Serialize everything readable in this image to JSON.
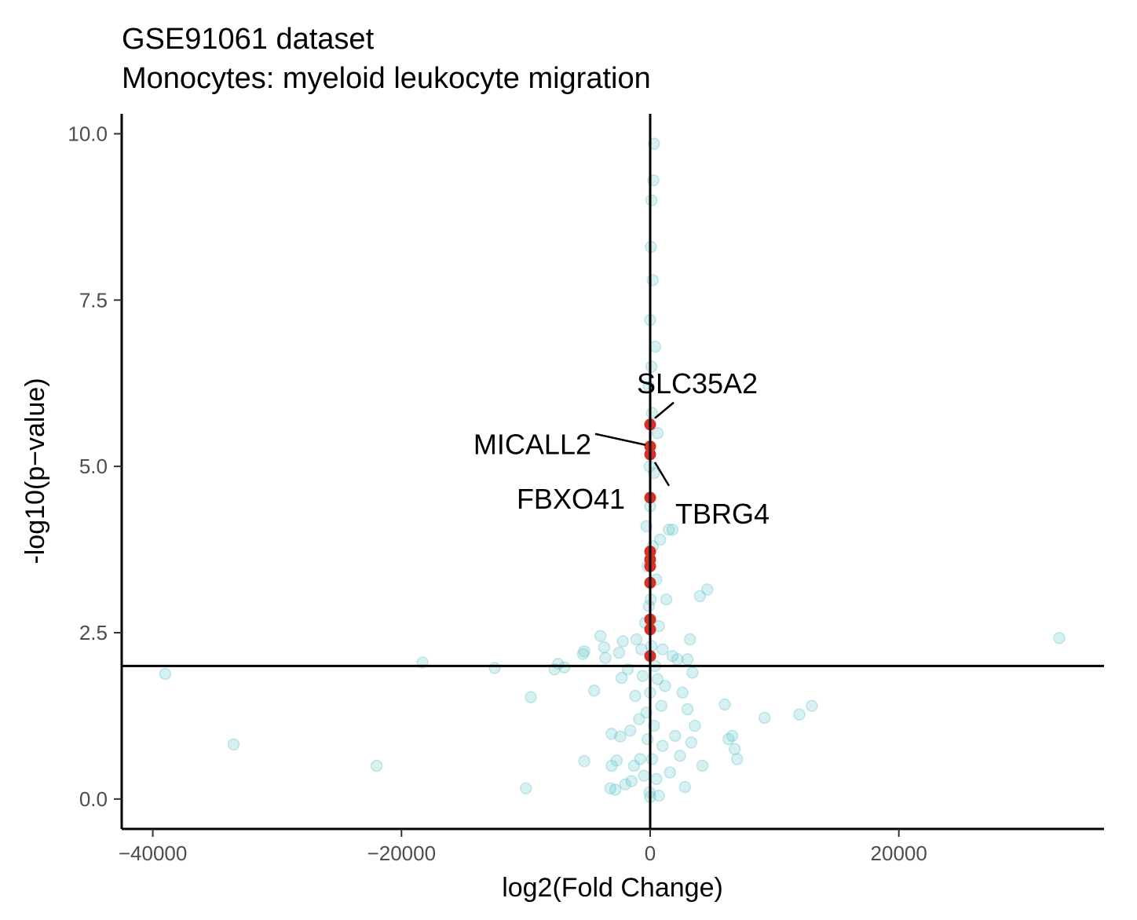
{
  "chart_data": {
    "type": "scatter",
    "title": "GSE91061 dataset",
    "subtitle": "Monocytes: myeloid leukocyte migration",
    "xlabel": "log2(Fold Change)",
    "ylabel": "-log10(p−value)",
    "xlim": [
      -42500,
      36500
    ],
    "ylim": [
      -0.45,
      10.3
    ],
    "x_ticks": [
      -40000,
      -20000,
      0,
      20000
    ],
    "x_tick_labels": [
      "−40000",
      "−20000",
      "0",
      "20000"
    ],
    "y_ticks": [
      0,
      2.5,
      5,
      7.5,
      10
    ],
    "y_tick_labels": [
      "0.0",
      "2.5",
      "5.0",
      "7.5",
      "10.0"
    ],
    "reference_lines": {
      "vertical_x": 0,
      "horizontal_y": 2
    },
    "grid": false,
    "colors": {
      "background_points": "#5fc4c8",
      "highlight_points": "#d73027",
      "axis": "#000000"
    },
    "background_points": [
      {
        "x": -39000,
        "y": 1.88
      },
      {
        "x": -33500,
        "y": 0.82
      },
      {
        "x": -22000,
        "y": 0.5
      },
      {
        "x": -18300,
        "y": 2.05
      },
      {
        "x": -12500,
        "y": 1.97
      },
      {
        "x": -10000,
        "y": 0.16
      },
      {
        "x": -9600,
        "y": 1.53
      },
      {
        "x": -7700,
        "y": 1.95
      },
      {
        "x": -7400,
        "y": 2.03
      },
      {
        "x": -6900,
        "y": 1.98
      },
      {
        "x": -5400,
        "y": 2.18
      },
      {
        "x": -5300,
        "y": 2.22
      },
      {
        "x": -5300,
        "y": 0.57
      },
      {
        "x": -4500,
        "y": 1.63
      },
      {
        "x": -4000,
        "y": 2.45
      },
      {
        "x": -3700,
        "y": 2.28
      },
      {
        "x": -3600,
        "y": 2.12
      },
      {
        "x": -3200,
        "y": 0.16
      },
      {
        "x": -3100,
        "y": 0.5
      },
      {
        "x": -3100,
        "y": 0.98
      },
      {
        "x": -2800,
        "y": 0.14
      },
      {
        "x": -2700,
        "y": 0.58
      },
      {
        "x": -2500,
        "y": 2.2
      },
      {
        "x": -2400,
        "y": 0.94
      },
      {
        "x": -2300,
        "y": 1.82
      },
      {
        "x": -2200,
        "y": 2.37
      },
      {
        "x": -2000,
        "y": 0.22
      },
      {
        "x": -1800,
        "y": 1.95
      },
      {
        "x": -1600,
        "y": 1.03
      },
      {
        "x": -1500,
        "y": 0.27
      },
      {
        "x": -1300,
        "y": 0.5
      },
      {
        "x": -1200,
        "y": 1.55
      },
      {
        "x": -1100,
        "y": 2.4
      },
      {
        "x": -900,
        "y": 1.2
      },
      {
        "x": -800,
        "y": 0.6
      },
      {
        "x": -700,
        "y": 2.25
      },
      {
        "x": -600,
        "y": 1.85
      },
      {
        "x": -500,
        "y": 0.35
      },
      {
        "x": -400,
        "y": 2.65
      },
      {
        "x": -300,
        "y": 4.1
      },
      {
        "x": -300,
        "y": 1.3
      },
      {
        "x": -200,
        "y": 3.5
      },
      {
        "x": -200,
        "y": 0.9
      },
      {
        "x": -100,
        "y": 6.2
      },
      {
        "x": -100,
        "y": 2.9
      },
      {
        "x": -50,
        "y": 5.0
      },
      {
        "x": -50,
        "y": 0.1
      },
      {
        "x": 0,
        "y": 7.2
      },
      {
        "x": 0,
        "y": 4.4
      },
      {
        "x": 0,
        "y": 1.6
      },
      {
        "x": 0,
        "y": 0.03
      },
      {
        "x": 50,
        "y": 8.3
      },
      {
        "x": 50,
        "y": 3.0
      },
      {
        "x": 100,
        "y": 9.0
      },
      {
        "x": 100,
        "y": 6.5
      },
      {
        "x": 100,
        "y": 2.3
      },
      {
        "x": 150,
        "y": 5.8
      },
      {
        "x": 150,
        "y": 0.6
      },
      {
        "x": 200,
        "y": 7.8
      },
      {
        "x": 200,
        "y": 3.8
      },
      {
        "x": 250,
        "y": 9.3
      },
      {
        "x": 300,
        "y": 9.85
      },
      {
        "x": 300,
        "y": 4.9
      },
      {
        "x": 300,
        "y": 1.1
      },
      {
        "x": 400,
        "y": 6.8
      },
      {
        "x": 400,
        "y": 2.0
      },
      {
        "x": 500,
        "y": 3.3
      },
      {
        "x": 500,
        "y": 0.3
      },
      {
        "x": 600,
        "y": 5.5
      },
      {
        "x": 600,
        "y": 1.8
      },
      {
        "x": 700,
        "y": 2.6
      },
      {
        "x": 700,
        "y": 0.05
      },
      {
        "x": 800,
        "y": 3.9
      },
      {
        "x": 900,
        "y": 1.4
      },
      {
        "x": 1000,
        "y": 2.25
      },
      {
        "x": 1000,
        "y": 0.8
      },
      {
        "x": 1200,
        "y": 1.7
      },
      {
        "x": 1300,
        "y": 3.0
      },
      {
        "x": 1500,
        "y": 4.05
      },
      {
        "x": 1600,
        "y": 0.4
      },
      {
        "x": 1800,
        "y": 2.15
      },
      {
        "x": 1800,
        "y": 4.05
      },
      {
        "x": 2000,
        "y": 0.95
      },
      {
        "x": 2200,
        "y": 2.1
      },
      {
        "x": 2400,
        "y": 0.65
      },
      {
        "x": 2600,
        "y": 1.6
      },
      {
        "x": 2800,
        "y": 0.18
      },
      {
        "x": 3000,
        "y": 2.1
      },
      {
        "x": 3000,
        "y": 1.35
      },
      {
        "x": 3200,
        "y": 2.4
      },
      {
        "x": 3300,
        "y": 0.85
      },
      {
        "x": 3400,
        "y": 1.9
      },
      {
        "x": 3600,
        "y": 1.1
      },
      {
        "x": 4000,
        "y": 3.05
      },
      {
        "x": 4200,
        "y": 0.5
      },
      {
        "x": 4600,
        "y": 3.15
      },
      {
        "x": 6000,
        "y": 1.42
      },
      {
        "x": 6300,
        "y": 0.9
      },
      {
        "x": 6600,
        "y": 0.95
      },
      {
        "x": 6800,
        "y": 0.75
      },
      {
        "x": 7000,
        "y": 0.6
      },
      {
        "x": 9200,
        "y": 1.22
      },
      {
        "x": 12000,
        "y": 1.27
      },
      {
        "x": 13000,
        "y": 1.4
      },
      {
        "x": 32900,
        "y": 2.42
      }
    ],
    "highlighted_points": [
      {
        "x": 0,
        "y": 5.63
      },
      {
        "x": 0,
        "y": 5.3
      },
      {
        "x": 0,
        "y": 5.18
      },
      {
        "x": 0,
        "y": 4.53
      },
      {
        "x": 0,
        "y": 3.72
      },
      {
        "x": 0,
        "y": 3.6
      },
      {
        "x": 0,
        "y": 3.5
      },
      {
        "x": 0,
        "y": 3.25
      },
      {
        "x": 0,
        "y": 2.7
      },
      {
        "x": 0,
        "y": 2.55
      },
      {
        "x": 0,
        "y": 2.15
      }
    ],
    "labeled_genes": [
      {
        "name": "SLC35A2",
        "x": 0,
        "y": 5.63
      },
      {
        "name": "MICALL2",
        "x": 0,
        "y": 5.3
      },
      {
        "name": "TBRG4",
        "x": 0,
        "y": 5.18
      },
      {
        "name": "FBXO41",
        "x": 0,
        "y": 4.53
      }
    ]
  }
}
